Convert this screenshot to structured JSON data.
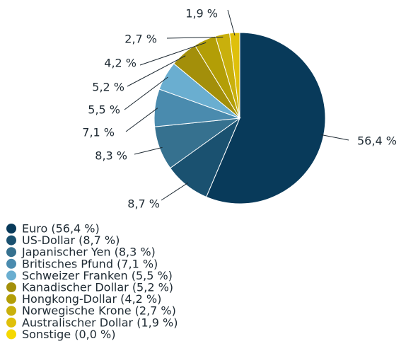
{
  "chart_data": {
    "type": "pie",
    "categories": [
      "Euro (56,4 %)",
      "US-Dollar (8,7 %)",
      "Japanischer Yen (8,3 %)",
      "Britisches Pfund (7,1 %)",
      "Schweizer Franken (5,5 %)",
      "Kanadischer Dollar (5,2 %)",
      "Hongkong-Dollar (4,2 %)",
      "Norwegische Krone (2,7 %)",
      "Australischer Dollar (1,9 %)",
      "Sonstige (0,0 %)"
    ],
    "values": [
      56.4,
      8.7,
      8.3,
      7.1,
      5.5,
      5.2,
      4.2,
      2.7,
      1.9,
      0.0
    ],
    "value_labels": [
      "56,4 %",
      "8,7 %",
      "8,3 %",
      "7,1 %",
      "5,5 %",
      "5,2 %",
      "4,2 %",
      "2,7 %",
      "1,9 %",
      null
    ],
    "colors": [
      "#083a5a",
      "#1a5170",
      "#36718f",
      "#4a8bae",
      "#6aaed0",
      "#a38f0a",
      "#b39e06",
      "#c9b00c",
      "#dfc00a",
      "#f5d800"
    ]
  }
}
